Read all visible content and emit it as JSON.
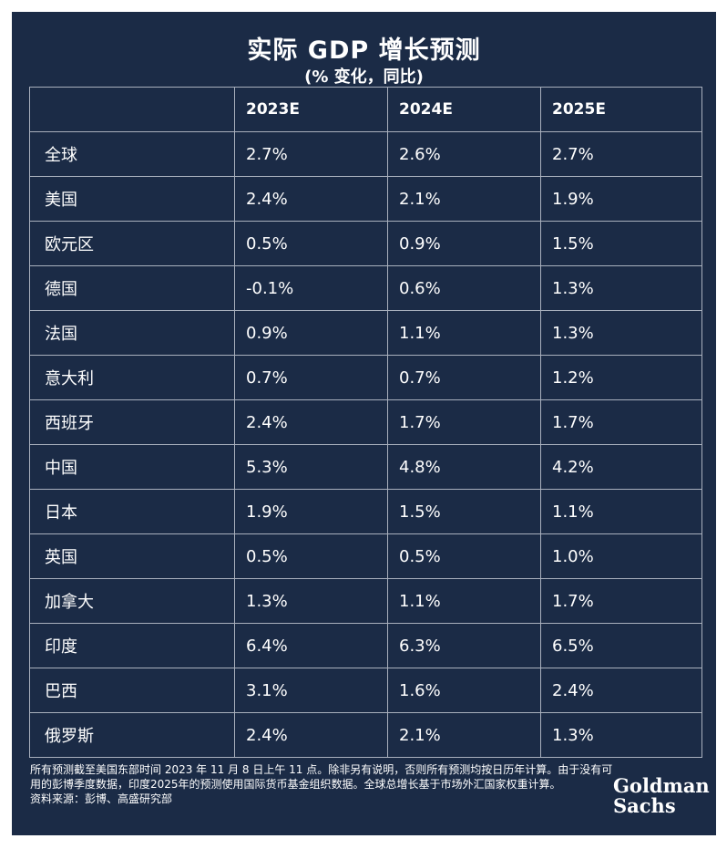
{
  "chart_data": {
    "type": "table",
    "title": "实际 GDP 增长预测",
    "subtitle": "(% 变化，同比)",
    "columns": [
      "",
      "2023E",
      "2024E",
      "2025E"
    ],
    "rows": [
      {
        "region": "全球",
        "values": [
          "2.7%",
          "2.6%",
          "2.7%"
        ]
      },
      {
        "region": "美国",
        "values": [
          "2.4%",
          "2.1%",
          "1.9%"
        ]
      },
      {
        "region": "欧元区",
        "values": [
          "0.5%",
          "0.9%",
          "1.5%"
        ]
      },
      {
        "region": "德国",
        "values": [
          "-0.1%",
          "0.6%",
          "1.3%"
        ]
      },
      {
        "region": "法国",
        "values": [
          "0.9%",
          "1.1%",
          "1.3%"
        ]
      },
      {
        "region": "意大利",
        "values": [
          "0.7%",
          "0.7%",
          "1.2%"
        ]
      },
      {
        "region": "西班牙",
        "values": [
          "2.4%",
          "1.7%",
          "1.7%"
        ]
      },
      {
        "region": "中国",
        "values": [
          "5.3%",
          "4.8%",
          "4.2%"
        ]
      },
      {
        "region": "日本",
        "values": [
          "1.9%",
          "1.5%",
          "1.1%"
        ]
      },
      {
        "region": "英国",
        "values": [
          "0.5%",
          "0.5%",
          "1.0%"
        ]
      },
      {
        "region": "加拿大",
        "values": [
          "1.3%",
          "1.1%",
          "1.7%"
        ]
      },
      {
        "region": "印度",
        "values": [
          "6.4%",
          "6.3%",
          "6.5%"
        ]
      },
      {
        "region": "巴西",
        "values": [
          "3.1%",
          "1.6%",
          "2.4%"
        ]
      },
      {
        "region": "俄罗斯",
        "values": [
          "2.4%",
          "2.1%",
          "1.3%"
        ]
      }
    ]
  },
  "footnote": {
    "line1": "所有预测截至美国东部时间 2023 年 11 月 8 日上午 11 点。除非另有说明，否则所有预测均按日历年计算。由于没有可用的彭博季度数据，印度2025年的预测使用国际货币基金组织数据。全球总增长基于市场外汇国家权重计算。",
    "source": "资料来源：彭博、高盛研究部"
  },
  "logo": {
    "line1": "Goldman",
    "line2": "Sachs"
  },
  "colors": {
    "background": "#1b2b46",
    "text": "#ffffff",
    "grid": "#a9b0bd"
  }
}
